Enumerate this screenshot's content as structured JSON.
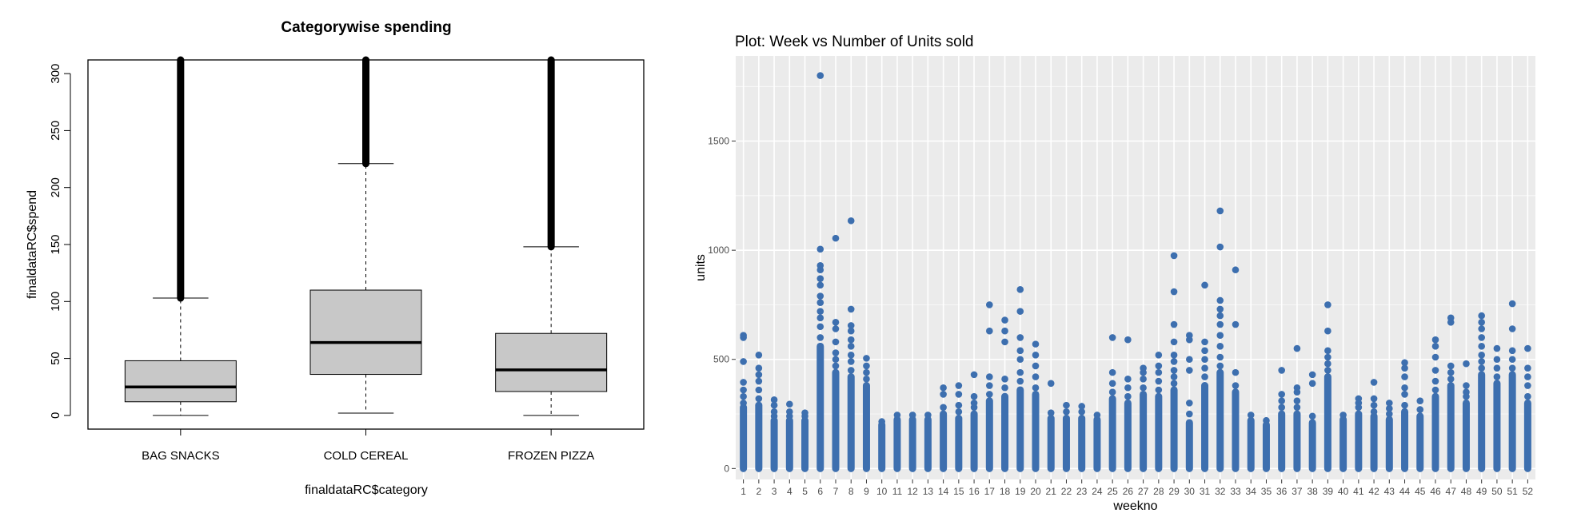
{
  "chart_data": [
    {
      "type": "box",
      "title": "Categorywise spending",
      "xlabel": "finaldataRC$category",
      "ylabel": "finaldataRC$spend",
      "ylim": [
        -12,
        312
      ],
      "yticks": [
        0,
        50,
        100,
        150,
        200,
        250,
        300
      ],
      "categories": [
        "BAG SNACKS",
        "COLD CEREAL",
        "FROZEN PIZZA"
      ],
      "boxes": [
        {
          "name": "BAG SNACKS",
          "whisker_low": 0,
          "q1": 12,
          "median": 25,
          "q3": 48,
          "whisker_high": 103,
          "outliers_from": 103,
          "outliers_to": 312
        },
        {
          "name": "COLD CEREAL",
          "whisker_low": 2,
          "q1": 36,
          "median": 64,
          "q3": 110,
          "whisker_high": 221,
          "outliers_from": 221,
          "outliers_to": 312
        },
        {
          "name": "FROZEN PIZZA",
          "whisker_low": 0,
          "q1": 21,
          "median": 40,
          "q3": 72,
          "whisker_high": 148,
          "outliers_from": 148,
          "outliers_to": 312
        }
      ],
      "colors": {
        "box_fill": "#c8c8c8",
        "stroke": "#000000"
      }
    },
    {
      "type": "scatter",
      "title": "Plot: Week vs Number of Units sold",
      "xlabel": "weekno",
      "ylabel": "units",
      "xlim": [
        0.5,
        52.5
      ],
      "ylim": [
        -50,
        1890
      ],
      "yticks": [
        0,
        500,
        1000,
        1500
      ],
      "xticks": [
        1,
        2,
        3,
        4,
        5,
        6,
        7,
        8,
        9,
        10,
        11,
        12,
        13,
        14,
        15,
        16,
        17,
        18,
        19,
        20,
        21,
        22,
        23,
        24,
        25,
        26,
        27,
        28,
        29,
        30,
        31,
        32,
        33,
        34,
        35,
        36,
        37,
        38,
        39,
        40,
        41,
        42,
        43,
        44,
        45,
        46,
        47,
        48,
        49,
        50,
        51,
        52
      ],
      "grid": true,
      "colors": {
        "point": "#3d6faf",
        "panel": "#ebebeb",
        "grid": "#ffffff"
      },
      "weeks": [
        {
          "week": 1,
          "dense_top": 280,
          "points": [
            300,
            330,
            360,
            395,
            490,
            600,
            610
          ]
        },
        {
          "week": 2,
          "dense_top": 290,
          "points": [
            320,
            360,
            400,
            430,
            460,
            520
          ]
        },
        {
          "week": 3,
          "dense_top": 220,
          "points": [
            240,
            260,
            290,
            315
          ]
        },
        {
          "week": 4,
          "dense_top": 220,
          "points": [
            240,
            260,
            295
          ]
        },
        {
          "week": 5,
          "dense_top": 220,
          "points": [
            240,
            255
          ]
        },
        {
          "week": 6,
          "dense_top": 560,
          "points": [
            600,
            650,
            690,
            720,
            760,
            790,
            840,
            870,
            910,
            930,
            1005,
            1800
          ]
        },
        {
          "week": 7,
          "dense_top": 440,
          "points": [
            470,
            500,
            530,
            580,
            640,
            670,
            1055
          ]
        },
        {
          "week": 8,
          "dense_top": 420,
          "points": [
            450,
            490,
            520,
            560,
            590,
            630,
            655,
            730,
            1135
          ]
        },
        {
          "week": 9,
          "dense_top": 380,
          "points": [
            410,
            440,
            470,
            505
          ]
        },
        {
          "week": 10,
          "dense_top": 200,
          "points": [
            215
          ]
        },
        {
          "week": 11,
          "dense_top": 225,
          "points": [
            245
          ]
        },
        {
          "week": 12,
          "dense_top": 225,
          "points": [
            245
          ]
        },
        {
          "week": 13,
          "dense_top": 225,
          "points": [
            245
          ]
        },
        {
          "week": 14,
          "dense_top": 250,
          "points": [
            280,
            340,
            370
          ]
        },
        {
          "week": 15,
          "dense_top": 230,
          "points": [
            260,
            290,
            340,
            380
          ]
        },
        {
          "week": 16,
          "dense_top": 250,
          "points": [
            280,
            300,
            330,
            430
          ]
        },
        {
          "week": 17,
          "dense_top": 310,
          "points": [
            340,
            380,
            420,
            630,
            750
          ]
        },
        {
          "week": 18,
          "dense_top": 330,
          "points": [
            370,
            410,
            580,
            630,
            680
          ]
        },
        {
          "week": 19,
          "dense_top": 360,
          "points": [
            400,
            440,
            500,
            540,
            600,
            720,
            820
          ]
        },
        {
          "week": 20,
          "dense_top": 340,
          "points": [
            370,
            420,
            470,
            520,
            570
          ]
        },
        {
          "week": 21,
          "dense_top": 230,
          "points": [
            255,
            390
          ]
        },
        {
          "week": 22,
          "dense_top": 230,
          "points": [
            260,
            290
          ]
        },
        {
          "week": 23,
          "dense_top": 230,
          "points": [
            260,
            285
          ]
        },
        {
          "week": 24,
          "dense_top": 225,
          "points": [
            245
          ]
        },
        {
          "week": 25,
          "dense_top": 320,
          "points": [
            350,
            390,
            440,
            600
          ]
        },
        {
          "week": 26,
          "dense_top": 300,
          "points": [
            330,
            370,
            410,
            590
          ]
        },
        {
          "week": 27,
          "dense_top": 340,
          "points": [
            370,
            410,
            440,
            460
          ]
        },
        {
          "week": 28,
          "dense_top": 330,
          "points": [
            360,
            400,
            440,
            470,
            520
          ]
        },
        {
          "week": 29,
          "dense_top": 360,
          "points": [
            390,
            420,
            450,
            490,
            520,
            580,
            660,
            810,
            975
          ]
        },
        {
          "week": 30,
          "dense_top": 210,
          "points": [
            250,
            300,
            450,
            500,
            590,
            610
          ]
        },
        {
          "week": 31,
          "dense_top": 380,
          "points": [
            420,
            460,
            500,
            540,
            580,
            840
          ]
        },
        {
          "week": 32,
          "dense_top": 440,
          "points": [
            470,
            510,
            560,
            610,
            660,
            700,
            730,
            770,
            1015,
            1180
          ]
        },
        {
          "week": 33,
          "dense_top": 350,
          "points": [
            380,
            440,
            660,
            910
          ]
        },
        {
          "week": 34,
          "dense_top": 220,
          "points": [
            245
          ]
        },
        {
          "week": 35,
          "dense_top": 200,
          "points": [
            220
          ]
        },
        {
          "week": 36,
          "dense_top": 250,
          "points": [
            280,
            310,
            340,
            450
          ]
        },
        {
          "week": 37,
          "dense_top": 250,
          "points": [
            280,
            310,
            350,
            370,
            550
          ]
        },
        {
          "week": 38,
          "dense_top": 210,
          "points": [
            240,
            390,
            430
          ]
        },
        {
          "week": 39,
          "dense_top": 420,
          "points": [
            450,
            480,
            510,
            540,
            630,
            750
          ]
        },
        {
          "week": 40,
          "dense_top": 225,
          "points": [
            245
          ]
        },
        {
          "week": 41,
          "dense_top": 250,
          "points": [
            280,
            300,
            320
          ]
        },
        {
          "week": 42,
          "dense_top": 240,
          "points": [
            260,
            290,
            320,
            395
          ]
        },
        {
          "week": 43,
          "dense_top": 225,
          "points": [
            250,
            275,
            300
          ]
        },
        {
          "week": 44,
          "dense_top": 260,
          "points": [
            290,
            340,
            370,
            420,
            460,
            485
          ]
        },
        {
          "week": 45,
          "dense_top": 240,
          "points": [
            270,
            310
          ]
        },
        {
          "week": 46,
          "dense_top": 330,
          "points": [
            360,
            400,
            450,
            510,
            560,
            590
          ]
        },
        {
          "week": 47,
          "dense_top": 380,
          "points": [
            410,
            440,
            470,
            670,
            690
          ]
        },
        {
          "week": 48,
          "dense_top": 300,
          "points": [
            330,
            350,
            380,
            480
          ]
        },
        {
          "week": 49,
          "dense_top": 430,
          "points": [
            460,
            490,
            520,
            560,
            600,
            640,
            670,
            700
          ]
        },
        {
          "week": 50,
          "dense_top": 390,
          "points": [
            420,
            460,
            500,
            550
          ]
        },
        {
          "week": 51,
          "dense_top": 430,
          "points": [
            460,
            500,
            540,
            640,
            755
          ]
        },
        {
          "week": 52,
          "dense_top": 300,
          "points": [
            330,
            380,
            420,
            460,
            550
          ]
        }
      ]
    }
  ]
}
